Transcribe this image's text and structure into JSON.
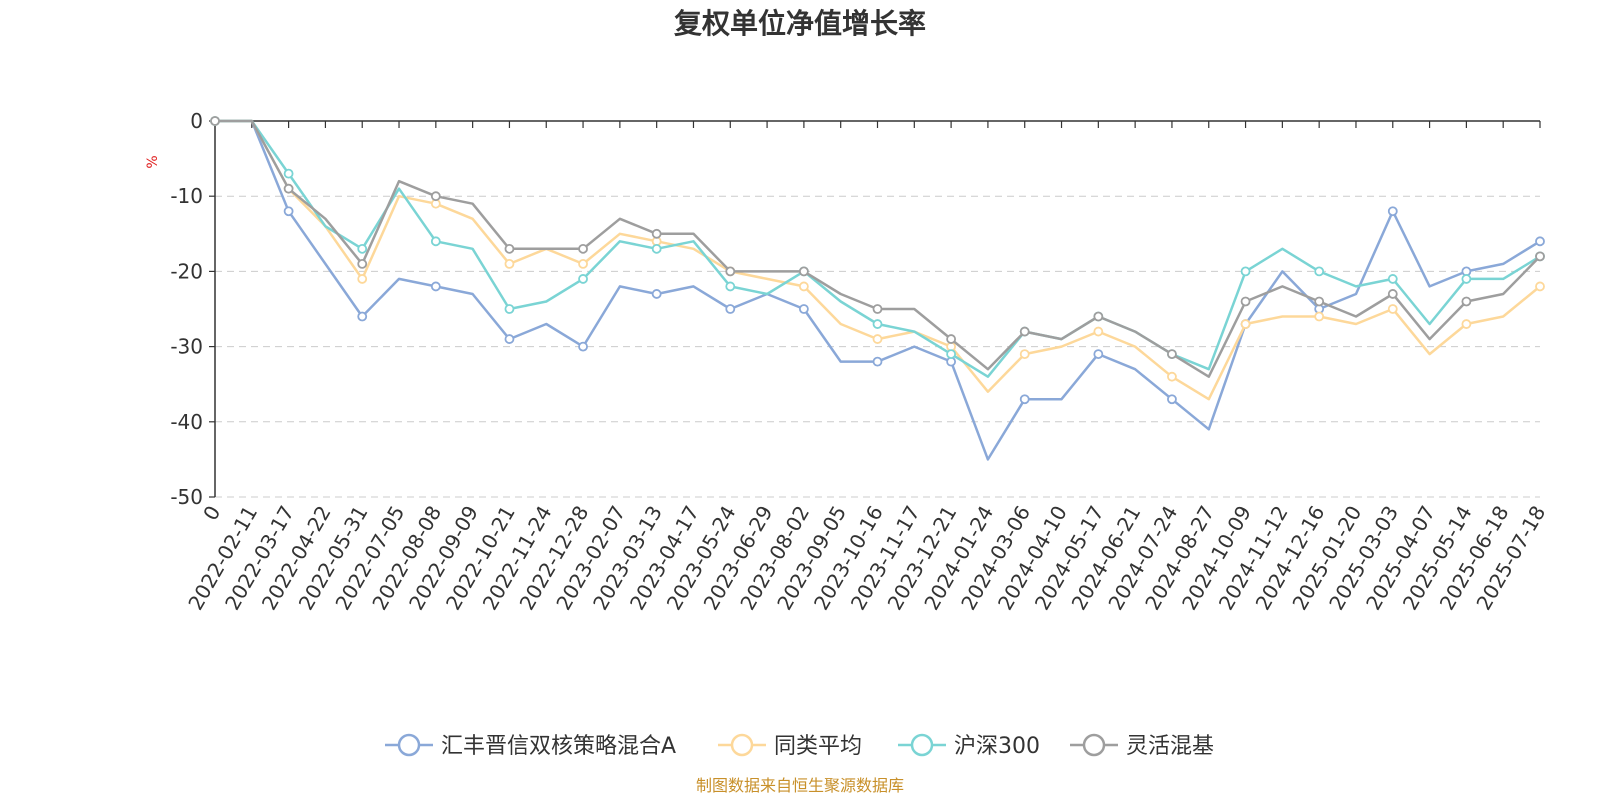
{
  "chart_data": {
    "type": "line",
    "title": "复权单位净值增长率",
    "ylabel": "%",
    "ylim": [
      -50,
      0
    ],
    "yticks": [
      0,
      -10,
      -20,
      -30,
      -40,
      -50
    ],
    "grid": true,
    "legend_position": "bottom",
    "source": "制图数据来自恒生聚源数据库",
    "x_first_label": "0",
    "categories": [
      "2022-02-11",
      "2022-03-17",
      "2022-04-22",
      "2022-05-31",
      "2022-07-05",
      "2022-08-08",
      "2022-09-09",
      "2022-10-21",
      "2022-11-24",
      "2022-12-28",
      "2023-02-07",
      "2023-03-13",
      "2023-04-17",
      "2023-05-24",
      "2023-06-29",
      "2023-08-02",
      "2023-09-05",
      "2023-10-16",
      "2023-11-17",
      "2023-12-21",
      "2024-01-24",
      "2024-03-06",
      "2024-04-10",
      "2024-05-17",
      "2024-06-21",
      "2024-07-24",
      "2024-08-27",
      "2024-10-09",
      "2024-11-12",
      "2024-12-16",
      "2025-01-20",
      "2025-03-03",
      "2025-04-07",
      "2025-05-14",
      "2025-06-18",
      "2025-07-18"
    ],
    "series": [
      {
        "name": "汇丰晋信双核策略混合A",
        "color": "#8aa8d8",
        "values": [
          0,
          -12,
          -19,
          -26,
          -21,
          -22,
          -23,
          -29,
          -27,
          -30,
          -22,
          -23,
          -22,
          -25,
          -23,
          -25,
          -32,
          -32,
          -30,
          -32,
          -45,
          -37,
          -37,
          -31,
          -33,
          -37,
          -41,
          -27,
          -20,
          -25,
          -23,
          -12,
          -22,
          -20,
          -19,
          -16
        ]
      },
      {
        "name": "同类平均",
        "color": "#fdd89a",
        "values": [
          0,
          -9,
          -14,
          -21,
          -10,
          -11,
          -13,
          -19,
          -17,
          -19,
          -15,
          -16,
          -17,
          -20,
          -21,
          -22,
          -27,
          -29,
          -28,
          -30,
          -36,
          -31,
          -30,
          -28,
          -30,
          -34,
          -37,
          -27,
          -26,
          -26,
          -27,
          -25,
          -31,
          -27,
          -26,
          -22
        ]
      },
      {
        "name": "沪深300",
        "color": "#7ad4d4",
        "values": [
          0,
          -7,
          -14,
          -17,
          -9,
          -16,
          -17,
          -25,
          -24,
          -21,
          -16,
          -17,
          -16,
          -22,
          -23,
          -20,
          -24,
          -27,
          -28,
          -31,
          -34,
          -28,
          -29,
          -26,
          -28,
          -31,
          -33,
          -20,
          -17,
          -20,
          -22,
          -21,
          -27,
          -21,
          -21,
          -18
        ]
      },
      {
        "name": "灵活混基",
        "color": "#9e9e9e",
        "values": [
          0,
          -9,
          -13,
          -19,
          -8,
          -10,
          -11,
          -17,
          -17,
          -17,
          -13,
          -15,
          -15,
          -20,
          -20,
          -20,
          -23,
          -25,
          -25,
          -29,
          -33,
          -28,
          -29,
          -26,
          -28,
          -31,
          -34,
          -24,
          -22,
          -24,
          -26,
          -23,
          -29,
          -24,
          -23,
          -18
        ]
      }
    ]
  }
}
